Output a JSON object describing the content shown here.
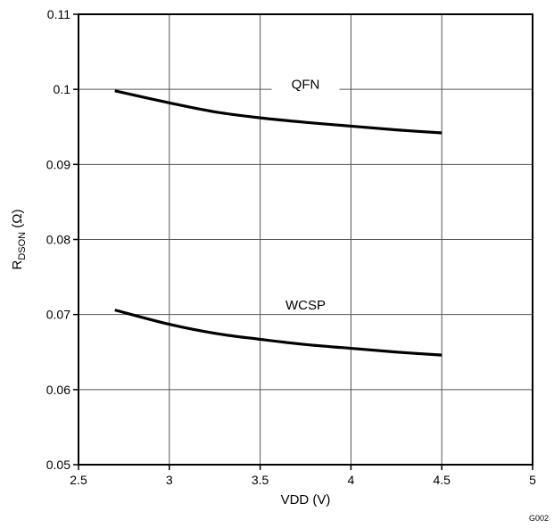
{
  "chart_data": {
    "type": "line",
    "xlabel": "VDD (V)",
    "ylabel": {
      "main": "R",
      "subscript": "DSON",
      "unit": " (Ω)"
    },
    "xlim": [
      2.5,
      5
    ],
    "ylim": [
      0.05,
      0.11
    ],
    "x_ticks": [
      2.5,
      3,
      3.5,
      4,
      4.5,
      5
    ],
    "x_tick_labels": [
      "2.5",
      "3",
      "3.5",
      "4",
      "4.5",
      "5"
    ],
    "y_ticks": [
      0.05,
      0.06,
      0.07,
      0.08,
      0.09,
      0.1,
      0.11
    ],
    "y_tick_labels": [
      "0.05",
      "0.06",
      "0.07",
      "0.08",
      "0.09",
      "0.1",
      "0.11"
    ],
    "grid": true,
    "series": [
      {
        "name": "QFN",
        "color": "#000000",
        "x": [
          2.7,
          3.0,
          3.25,
          3.5,
          3.75,
          4.0,
          4.25,
          4.5
        ],
        "y": [
          0.0998,
          0.0982,
          0.097,
          0.0962,
          0.0956,
          0.0951,
          0.0946,
          0.0942
        ]
      },
      {
        "name": "WCSP",
        "color": "#000000",
        "x": [
          2.7,
          3.0,
          3.25,
          3.5,
          3.75,
          4.0,
          4.25,
          4.5
        ],
        "y": [
          0.0706,
          0.0687,
          0.0675,
          0.0667,
          0.066,
          0.0655,
          0.065,
          0.0646
        ]
      }
    ]
  },
  "figure_code": "G002"
}
